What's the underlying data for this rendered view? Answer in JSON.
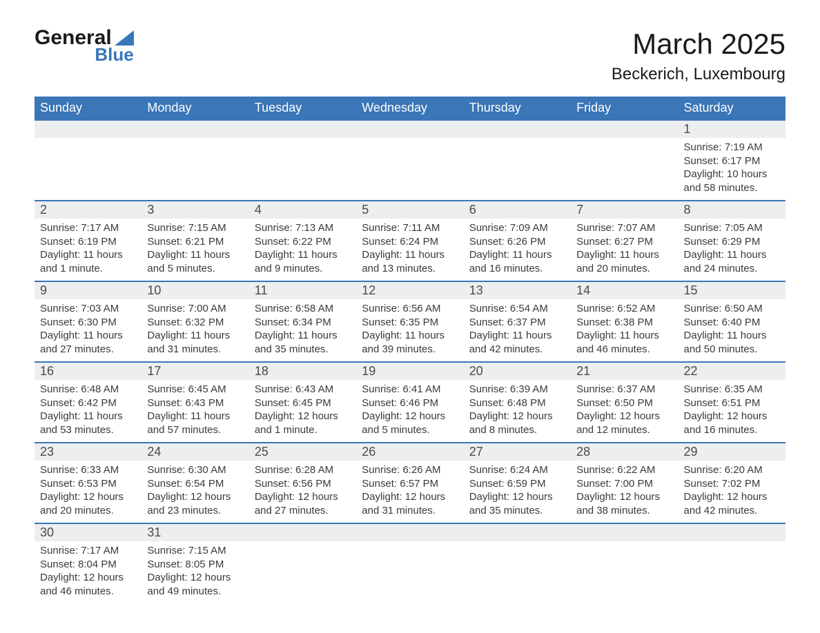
{
  "logo": {
    "line1": "General",
    "line2": "Blue"
  },
  "title": "March 2025",
  "location": "Beckerich, Luxembourg",
  "colors": {
    "header_bg": "#3a76b8",
    "header_text": "#ffffff",
    "daynum_bg": "#eceeef",
    "body_text": "#3a3a3a",
    "rule": "#3a76b8",
    "page_bg": "#ffffff"
  },
  "weekdays": [
    "Sunday",
    "Monday",
    "Tuesday",
    "Wednesday",
    "Thursday",
    "Friday",
    "Saturday"
  ],
  "weeks": [
    {
      "days": [
        {
          "num": "",
          "lines": [
            "",
            "",
            "",
            ""
          ]
        },
        {
          "num": "",
          "lines": [
            "",
            "",
            "",
            ""
          ]
        },
        {
          "num": "",
          "lines": [
            "",
            "",
            "",
            ""
          ]
        },
        {
          "num": "",
          "lines": [
            "",
            "",
            "",
            ""
          ]
        },
        {
          "num": "",
          "lines": [
            "",
            "",
            "",
            ""
          ]
        },
        {
          "num": "",
          "lines": [
            "",
            "",
            "",
            ""
          ]
        },
        {
          "num": "1",
          "lines": [
            "Sunrise: 7:19 AM",
            "Sunset: 6:17 PM",
            "Daylight: 10 hours",
            "and 58 minutes."
          ]
        }
      ]
    },
    {
      "days": [
        {
          "num": "2",
          "lines": [
            "Sunrise: 7:17 AM",
            "Sunset: 6:19 PM",
            "Daylight: 11 hours",
            "and 1 minute."
          ]
        },
        {
          "num": "3",
          "lines": [
            "Sunrise: 7:15 AM",
            "Sunset: 6:21 PM",
            "Daylight: 11 hours",
            "and 5 minutes."
          ]
        },
        {
          "num": "4",
          "lines": [
            "Sunrise: 7:13 AM",
            "Sunset: 6:22 PM",
            "Daylight: 11 hours",
            "and 9 minutes."
          ]
        },
        {
          "num": "5",
          "lines": [
            "Sunrise: 7:11 AM",
            "Sunset: 6:24 PM",
            "Daylight: 11 hours",
            "and 13 minutes."
          ]
        },
        {
          "num": "6",
          "lines": [
            "Sunrise: 7:09 AM",
            "Sunset: 6:26 PM",
            "Daylight: 11 hours",
            "and 16 minutes."
          ]
        },
        {
          "num": "7",
          "lines": [
            "Sunrise: 7:07 AM",
            "Sunset: 6:27 PM",
            "Daylight: 11 hours",
            "and 20 minutes."
          ]
        },
        {
          "num": "8",
          "lines": [
            "Sunrise: 7:05 AM",
            "Sunset: 6:29 PM",
            "Daylight: 11 hours",
            "and 24 minutes."
          ]
        }
      ]
    },
    {
      "days": [
        {
          "num": "9",
          "lines": [
            "Sunrise: 7:03 AM",
            "Sunset: 6:30 PM",
            "Daylight: 11 hours",
            "and 27 minutes."
          ]
        },
        {
          "num": "10",
          "lines": [
            "Sunrise: 7:00 AM",
            "Sunset: 6:32 PM",
            "Daylight: 11 hours",
            "and 31 minutes."
          ]
        },
        {
          "num": "11",
          "lines": [
            "Sunrise: 6:58 AM",
            "Sunset: 6:34 PM",
            "Daylight: 11 hours",
            "and 35 minutes."
          ]
        },
        {
          "num": "12",
          "lines": [
            "Sunrise: 6:56 AM",
            "Sunset: 6:35 PM",
            "Daylight: 11 hours",
            "and 39 minutes."
          ]
        },
        {
          "num": "13",
          "lines": [
            "Sunrise: 6:54 AM",
            "Sunset: 6:37 PM",
            "Daylight: 11 hours",
            "and 42 minutes."
          ]
        },
        {
          "num": "14",
          "lines": [
            "Sunrise: 6:52 AM",
            "Sunset: 6:38 PM",
            "Daylight: 11 hours",
            "and 46 minutes."
          ]
        },
        {
          "num": "15",
          "lines": [
            "Sunrise: 6:50 AM",
            "Sunset: 6:40 PM",
            "Daylight: 11 hours",
            "and 50 minutes."
          ]
        }
      ]
    },
    {
      "days": [
        {
          "num": "16",
          "lines": [
            "Sunrise: 6:48 AM",
            "Sunset: 6:42 PM",
            "Daylight: 11 hours",
            "and 53 minutes."
          ]
        },
        {
          "num": "17",
          "lines": [
            "Sunrise: 6:45 AM",
            "Sunset: 6:43 PM",
            "Daylight: 11 hours",
            "and 57 minutes."
          ]
        },
        {
          "num": "18",
          "lines": [
            "Sunrise: 6:43 AM",
            "Sunset: 6:45 PM",
            "Daylight: 12 hours",
            "and 1 minute."
          ]
        },
        {
          "num": "19",
          "lines": [
            "Sunrise: 6:41 AM",
            "Sunset: 6:46 PM",
            "Daylight: 12 hours",
            "and 5 minutes."
          ]
        },
        {
          "num": "20",
          "lines": [
            "Sunrise: 6:39 AM",
            "Sunset: 6:48 PM",
            "Daylight: 12 hours",
            "and 8 minutes."
          ]
        },
        {
          "num": "21",
          "lines": [
            "Sunrise: 6:37 AM",
            "Sunset: 6:50 PM",
            "Daylight: 12 hours",
            "and 12 minutes."
          ]
        },
        {
          "num": "22",
          "lines": [
            "Sunrise: 6:35 AM",
            "Sunset: 6:51 PM",
            "Daylight: 12 hours",
            "and 16 minutes."
          ]
        }
      ]
    },
    {
      "days": [
        {
          "num": "23",
          "lines": [
            "Sunrise: 6:33 AM",
            "Sunset: 6:53 PM",
            "Daylight: 12 hours",
            "and 20 minutes."
          ]
        },
        {
          "num": "24",
          "lines": [
            "Sunrise: 6:30 AM",
            "Sunset: 6:54 PM",
            "Daylight: 12 hours",
            "and 23 minutes."
          ]
        },
        {
          "num": "25",
          "lines": [
            "Sunrise: 6:28 AM",
            "Sunset: 6:56 PM",
            "Daylight: 12 hours",
            "and 27 minutes."
          ]
        },
        {
          "num": "26",
          "lines": [
            "Sunrise: 6:26 AM",
            "Sunset: 6:57 PM",
            "Daylight: 12 hours",
            "and 31 minutes."
          ]
        },
        {
          "num": "27",
          "lines": [
            "Sunrise: 6:24 AM",
            "Sunset: 6:59 PM",
            "Daylight: 12 hours",
            "and 35 minutes."
          ]
        },
        {
          "num": "28",
          "lines": [
            "Sunrise: 6:22 AM",
            "Sunset: 7:00 PM",
            "Daylight: 12 hours",
            "and 38 minutes."
          ]
        },
        {
          "num": "29",
          "lines": [
            "Sunrise: 6:20 AM",
            "Sunset: 7:02 PM",
            "Daylight: 12 hours",
            "and 42 minutes."
          ]
        }
      ]
    },
    {
      "days": [
        {
          "num": "30",
          "lines": [
            "Sunrise: 7:17 AM",
            "Sunset: 8:04 PM",
            "Daylight: 12 hours",
            "and 46 minutes."
          ]
        },
        {
          "num": "31",
          "lines": [
            "Sunrise: 7:15 AM",
            "Sunset: 8:05 PM",
            "Daylight: 12 hours",
            "and 49 minutes."
          ]
        },
        {
          "num": "",
          "lines": [
            "",
            "",
            "",
            ""
          ]
        },
        {
          "num": "",
          "lines": [
            "",
            "",
            "",
            ""
          ]
        },
        {
          "num": "",
          "lines": [
            "",
            "",
            "",
            ""
          ]
        },
        {
          "num": "",
          "lines": [
            "",
            "",
            "",
            ""
          ]
        },
        {
          "num": "",
          "lines": [
            "",
            "",
            "",
            ""
          ]
        }
      ]
    }
  ]
}
